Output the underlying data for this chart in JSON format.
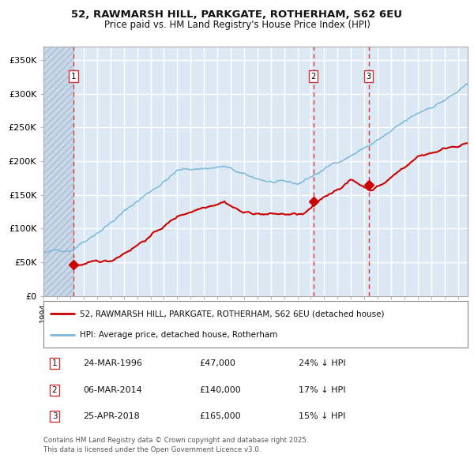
{
  "title": "52, RAWMARSH HILL, PARKGATE, ROTHERHAM, S62 6EU",
  "subtitle": "Price paid vs. HM Land Registry's House Price Index (HPI)",
  "background_color": "#dce9f5",
  "grid_color": "#ffffff",
  "hpi_color": "#7ab8d9",
  "price_color": "#cc0000",
  "vline_color": "#dd3333",
  "ylim": [
    0,
    370000
  ],
  "yticks": [
    0,
    50000,
    100000,
    150000,
    200000,
    250000,
    300000,
    350000
  ],
  "ytick_labels": [
    "£0",
    "£50K",
    "£100K",
    "£150K",
    "£200K",
    "£250K",
    "£300K",
    "£350K"
  ],
  "sales": [
    {
      "date_num": 1996.23,
      "price": 47000,
      "label": "1"
    },
    {
      "date_num": 2014.18,
      "price": 140000,
      "label": "2"
    },
    {
      "date_num": 2018.32,
      "price": 165000,
      "label": "3"
    }
  ],
  "sale_info": [
    {
      "num": "1",
      "date": "24-MAR-1996",
      "price": "£47,000",
      "hpi": "24% ↓ HPI"
    },
    {
      "num": "2",
      "date": "06-MAR-2014",
      "price": "£140,000",
      "hpi": "17% ↓ HPI"
    },
    {
      "num": "3",
      "date": "25-APR-2018",
      "price": "£165,000",
      "hpi": "15% ↓ HPI"
    }
  ],
  "legend_entries": [
    "52, RAWMARSH HILL, PARKGATE, ROTHERHAM, S62 6EU (detached house)",
    "HPI: Average price, detached house, Rotherham"
  ],
  "footnote": "Contains HM Land Registry data © Crown copyright and database right 2025.\nThis data is licensed under the Open Government Licence v3.0.",
  "xmin": 1994.0,
  "xmax": 2025.75
}
